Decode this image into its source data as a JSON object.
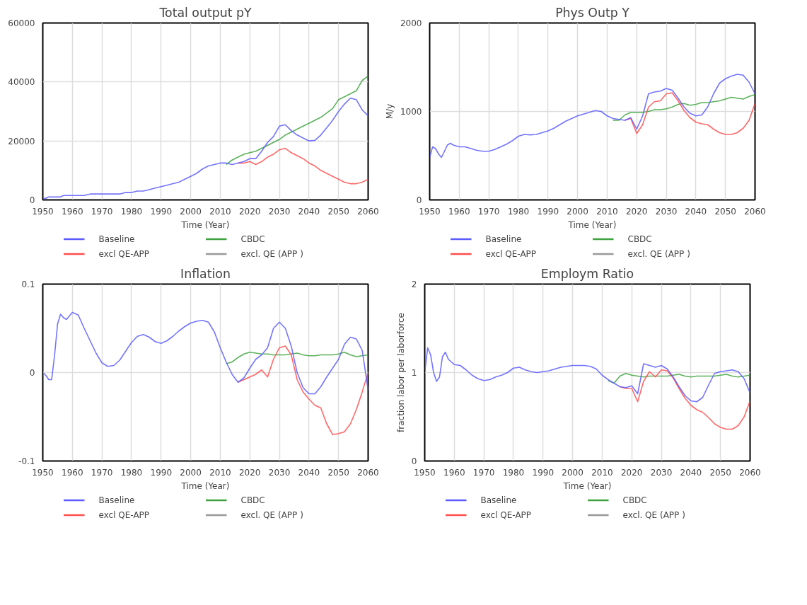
{
  "chart_data": [
    {
      "type": "line",
      "title": "Total output pY",
      "xlabel": "Time (Year)",
      "xlim": [
        1950,
        2060
      ],
      "xticks": [
        1950,
        1960,
        1970,
        1980,
        1990,
        2000,
        2010,
        2020,
        2030,
        2040,
        2050,
        2060
      ],
      "ylim": [
        0,
        60000
      ],
      "yticks": [
        0,
        20000,
        40000,
        60000
      ],
      "grid": true,
      "legend": "bottom",
      "line_style": "solid",
      "x": [
        1950,
        1951,
        1952,
        1953,
        1954,
        1955,
        1956,
        1957,
        1958,
        1960,
        1962,
        1964,
        1966,
        1968,
        1970,
        1972,
        1974,
        1976,
        1978,
        1980,
        1982,
        1984,
        1986,
        1988,
        1990,
        1992,
        1994,
        1996,
        1998,
        2000,
        2002,
        2004,
        2006,
        2008,
        2010,
        2012,
        2014,
        2016,
        2018,
        2020,
        2022,
        2024,
        2026,
        2028,
        2030,
        2032,
        2034,
        2036,
        2038,
        2040,
        2042,
        2044,
        2046,
        2048,
        2050,
        2052,
        2054,
        2056,
        2058,
        2060
      ],
      "series": [
        {
          "name": "Baseline",
          "color": "#5c5cff",
          "values": [
            500,
            500,
            1000,
            1000,
            1000,
            1000,
            1000,
            1500,
            1500,
            1500,
            1500,
            1500,
            2000,
            2000,
            2000,
            2000,
            2000,
            2000,
            2500,
            2500,
            3000,
            3000,
            3500,
            4000,
            4500,
            5000,
            5500,
            6000,
            7000,
            8000,
            9000,
            10500,
            11500,
            12000,
            12500,
            12500,
            12000,
            12500,
            13000,
            14000,
            14000,
            16500,
            19500,
            21500,
            25000,
            25500,
            23500,
            22000,
            21000,
            20000,
            20200,
            22000,
            24500,
            27000,
            30000,
            32500,
            34500,
            34000,
            30500,
            28500
          ]
        },
        {
          "name": "excl QE-APP",
          "color": "#ff4d4d",
          "values": [
            null,
            null,
            null,
            null,
            null,
            null,
            null,
            null,
            null,
            null,
            null,
            null,
            null,
            null,
            null,
            null,
            null,
            null,
            null,
            null,
            null,
            null,
            null,
            null,
            null,
            null,
            null,
            null,
            null,
            null,
            null,
            null,
            null,
            null,
            null,
            null,
            null,
            12500,
            12500,
            13000,
            12000,
            13000,
            14500,
            15500,
            17000,
            17500,
            16000,
            15000,
            14000,
            12500,
            11500,
            10000,
            9000,
            8000,
            7000,
            6000,
            5500,
            5500,
            6000,
            7000
          ]
        },
        {
          "name": "CBDC",
          "color": "#3fa43f",
          "values": [
            null,
            null,
            null,
            null,
            null,
            null,
            null,
            null,
            null,
            null,
            null,
            null,
            null,
            null,
            null,
            null,
            null,
            null,
            null,
            null,
            null,
            null,
            null,
            null,
            null,
            null,
            null,
            null,
            null,
            null,
            null,
            null,
            null,
            null,
            null,
            12000,
            13500,
            14500,
            15500,
            16000,
            16500,
            17500,
            18500,
            19500,
            20500,
            22000,
            23000,
            24000,
            25000,
            26000,
            27000,
            28000,
            29500,
            31000,
            34000,
            35000,
            36000,
            37000,
            40500,
            42000
          ]
        },
        {
          "name": "excl. QE (APP )",
          "color": "#999999",
          "values": [
            null,
            null,
            null,
            null,
            null,
            null,
            null,
            null,
            null,
            null,
            null,
            null,
            null,
            null,
            null,
            null,
            null,
            null,
            null,
            null,
            null,
            null,
            null,
            null,
            null,
            null,
            null,
            null,
            null,
            null,
            null,
            null,
            null,
            null,
            null,
            null,
            null,
            null,
            null,
            null,
            null,
            null,
            null,
            null,
            null,
            null,
            null,
            null,
            null,
            null,
            null,
            null,
            null,
            null,
            null,
            null,
            null,
            null,
            null,
            null
          ]
        }
      ]
    },
    {
      "type": "line",
      "title": "Phys Outp Y",
      "xlabel": "Time (Year)",
      "ylabel": "M/y",
      "xlim": [
        1950,
        2060
      ],
      "xticks": [
        1950,
        1960,
        1970,
        1980,
        1990,
        2000,
        2010,
        2020,
        2030,
        2040,
        2050,
        2060
      ],
      "ylim": [
        0,
        2000
      ],
      "yticks": [
        0,
        1000,
        2000
      ],
      "grid": true,
      "legend": "bottom",
      "line_style": "solid",
      "x": [
        1950,
        1951,
        1952,
        1953,
        1954,
        1955,
        1956,
        1957,
        1958,
        1960,
        1962,
        1964,
        1966,
        1968,
        1970,
        1972,
        1974,
        1976,
        1978,
        1980,
        1982,
        1984,
        1986,
        1988,
        1990,
        1992,
        1994,
        1996,
        1998,
        2000,
        2002,
        2004,
        2006,
        2008,
        2010,
        2012,
        2014,
        2016,
        2018,
        2020,
        2022,
        2024,
        2026,
        2028,
        2030,
        2032,
        2034,
        2036,
        2038,
        2040,
        2042,
        2044,
        2046,
        2048,
        2050,
        2052,
        2054,
        2056,
        2058,
        2060
      ],
      "series": [
        {
          "name": "Baseline",
          "color": "#5c5cff",
          "values": [
            480,
            600,
            580,
            520,
            480,
            550,
            620,
            640,
            620,
            600,
            600,
            580,
            560,
            550,
            550,
            570,
            600,
            630,
            670,
            720,
            740,
            735,
            740,
            760,
            780,
            810,
            850,
            890,
            920,
            950,
            970,
            990,
            1010,
            1000,
            950,
            920,
            910,
            900,
            930,
            800,
            950,
            1200,
            1220,
            1230,
            1260,
            1240,
            1150,
            1050,
            980,
            950,
            960,
            1050,
            1200,
            1320,
            1370,
            1400,
            1420,
            1410,
            1330,
            1200
          ]
        },
        {
          "name": "excl QE-APP",
          "color": "#ff4d4d",
          "values": [
            null,
            null,
            null,
            null,
            null,
            null,
            null,
            null,
            null,
            null,
            null,
            null,
            null,
            null,
            null,
            null,
            null,
            null,
            null,
            null,
            null,
            null,
            null,
            null,
            null,
            null,
            null,
            null,
            null,
            null,
            null,
            null,
            null,
            null,
            null,
            null,
            null,
            900,
            920,
            750,
            850,
            1050,
            1110,
            1120,
            1200,
            1210,
            1120,
            1010,
            930,
            880,
            860,
            850,
            800,
            760,
            740,
            740,
            760,
            810,
            900,
            1090
          ]
        },
        {
          "name": "CBDC",
          "color": "#3fa43f",
          "values": [
            null,
            null,
            null,
            null,
            null,
            null,
            null,
            null,
            null,
            null,
            null,
            null,
            null,
            null,
            null,
            null,
            null,
            null,
            null,
            null,
            null,
            null,
            null,
            null,
            null,
            null,
            null,
            null,
            null,
            null,
            null,
            null,
            null,
            null,
            null,
            900,
            900,
            960,
            990,
            990,
            990,
            1000,
            1020,
            1020,
            1030,
            1050,
            1080,
            1090,
            1070,
            1080,
            1100,
            1100,
            1110,
            1120,
            1140,
            1160,
            1150,
            1140,
            1170,
            1190
          ]
        },
        {
          "name": "excl. QE (APP )",
          "color": "#999999",
          "values": [
            null,
            null,
            null,
            null,
            null,
            null,
            null,
            null,
            null,
            null,
            null,
            null,
            null,
            null,
            null,
            null,
            null,
            null,
            null,
            null,
            null,
            null,
            null,
            null,
            null,
            null,
            null,
            null,
            null,
            null,
            null,
            null,
            null,
            null,
            null,
            null,
            null,
            null,
            null,
            null,
            null,
            null,
            null,
            null,
            null,
            null,
            null,
            null,
            null,
            null,
            null,
            null,
            null,
            null,
            null,
            null,
            null,
            null,
            null,
            null
          ]
        }
      ]
    },
    {
      "type": "line",
      "title": "Inflation",
      "xlabel": "Time (Year)",
      "xlim": [
        1950,
        2060
      ],
      "xticks": [
        1950,
        1960,
        1970,
        1980,
        1990,
        2000,
        2010,
        2020,
        2030,
        2040,
        2050,
        2060
      ],
      "ylim": [
        -0.1,
        0.1
      ],
      "yticks": [
        -0.1,
        0,
        0.1
      ],
      "grid": true,
      "legend": "bottom",
      "line_style": "solid",
      "x": [
        1950,
        1951,
        1952,
        1953,
        1954,
        1955,
        1956,
        1957,
        1958,
        1960,
        1962,
        1964,
        1966,
        1968,
        1970,
        1972,
        1974,
        1976,
        1978,
        1980,
        1982,
        1984,
        1986,
        1988,
        1990,
        1992,
        1994,
        1996,
        1998,
        2000,
        2002,
        2004,
        2006,
        2008,
        2010,
        2012,
        2014,
        2016,
        2018,
        2020,
        2022,
        2024,
        2026,
        2028,
        2030,
        2032,
        2034,
        2036,
        2038,
        2040,
        2042,
        2044,
        2046,
        2048,
        2050,
        2052,
        2054,
        2056,
        2058,
        2060
      ],
      "series": [
        {
          "name": "Baseline",
          "color": "#5c5cff",
          "values": [
            0,
            -0.003,
            -0.008,
            -0.008,
            0.02,
            0.055,
            0.066,
            0.062,
            0.06,
            0.068,
            0.065,
            0.05,
            0.036,
            0.022,
            0.011,
            0.007,
            0.008,
            0.014,
            0.024,
            0.034,
            0.041,
            0.043,
            0.04,
            0.035,
            0.033,
            0.036,
            0.041,
            0.047,
            0.052,
            0.056,
            0.058,
            0.059,
            0.057,
            0.046,
            0.028,
            0.012,
            -0.002,
            -0.011,
            -0.006,
            0.005,
            0.015,
            0.02,
            0.028,
            0.05,
            0.057,
            0.05,
            0.03,
            0.0,
            -0.017,
            -0.024,
            -0.024,
            -0.016,
            -0.005,
            0.005,
            0.015,
            0.032,
            0.04,
            0.038,
            0.025,
            -0.02
          ]
        },
        {
          "name": "excl QE-APP",
          "color": "#ff4d4d",
          "values": [
            null,
            null,
            null,
            null,
            null,
            null,
            null,
            null,
            null,
            null,
            null,
            null,
            null,
            null,
            null,
            null,
            null,
            null,
            null,
            null,
            null,
            null,
            null,
            null,
            null,
            null,
            null,
            null,
            null,
            null,
            null,
            null,
            null,
            null,
            null,
            null,
            null,
            -0.011,
            -0.008,
            -0.005,
            -0.002,
            0.003,
            -0.005,
            0.015,
            0.028,
            0.03,
            0.02,
            -0.008,
            -0.022,
            -0.03,
            -0.037,
            -0.04,
            -0.058,
            -0.07,
            -0.069,
            -0.067,
            -0.058,
            -0.042,
            -0.022,
            0.0
          ]
        },
        {
          "name": "CBDC",
          "color": "#3fa43f",
          "values": [
            null,
            null,
            null,
            null,
            null,
            null,
            null,
            null,
            null,
            null,
            null,
            null,
            null,
            null,
            null,
            null,
            null,
            null,
            null,
            null,
            null,
            null,
            null,
            null,
            null,
            null,
            null,
            null,
            null,
            null,
            null,
            null,
            null,
            null,
            null,
            0.01,
            0.012,
            0.017,
            0.021,
            0.023,
            0.022,
            0.021,
            0.021,
            0.02,
            0.02,
            0.02,
            0.021,
            0.022,
            0.02,
            0.019,
            0.019,
            0.02,
            0.02,
            0.02,
            0.021,
            0.023,
            0.02,
            0.018,
            0.019,
            0.02
          ]
        },
        {
          "name": "excl. QE (APP )",
          "color": "#999999",
          "values": [
            null,
            null,
            null,
            null,
            null,
            null,
            null,
            null,
            null,
            null,
            null,
            null,
            null,
            null,
            null,
            null,
            null,
            null,
            null,
            null,
            null,
            null,
            null,
            null,
            null,
            null,
            null,
            null,
            null,
            null,
            null,
            null,
            null,
            null,
            null,
            null,
            null,
            null,
            null,
            null,
            null,
            null,
            null,
            null,
            null,
            null,
            null,
            null,
            null,
            null,
            null,
            null,
            null,
            null,
            null,
            null,
            null,
            null,
            null,
            null
          ]
        }
      ]
    },
    {
      "type": "line",
      "title": "Employm Ratio",
      "xlabel": "Time (Year)",
      "ylabel": "fraction labor per laborforce",
      "xlim": [
        1950,
        2060
      ],
      "xticks": [
        1950,
        1960,
        1970,
        1980,
        1990,
        2000,
        2010,
        2020,
        2030,
        2040,
        2050,
        2060
      ],
      "ylim": [
        0,
        2
      ],
      "yticks": [
        0,
        1,
        2
      ],
      "grid": true,
      "legend": "bottom",
      "line_style": "solid",
      "x": [
        1950,
        1951,
        1952,
        1953,
        1954,
        1955,
        1956,
        1957,
        1958,
        1960,
        1962,
        1964,
        1966,
        1968,
        1970,
        1972,
        1974,
        1976,
        1978,
        1980,
        1982,
        1984,
        1986,
        1988,
        1990,
        1992,
        1994,
        1996,
        1998,
        2000,
        2002,
        2004,
        2006,
        2008,
        2010,
        2012,
        2014,
        2016,
        2018,
        2020,
        2022,
        2024,
        2026,
        2028,
        2030,
        2032,
        2034,
        2036,
        2038,
        2040,
        2042,
        2044,
        2046,
        2048,
        2050,
        2052,
        2054,
        2056,
        2058,
        2060
      ],
      "series": [
        {
          "name": "Baseline",
          "color": "#5c5cff",
          "values": [
            1.0,
            1.28,
            1.2,
            1.0,
            0.9,
            0.95,
            1.18,
            1.23,
            1.15,
            1.09,
            1.08,
            1.03,
            0.97,
            0.93,
            0.91,
            0.92,
            0.95,
            0.97,
            1.0,
            1.05,
            1.06,
            1.03,
            1.01,
            1.0,
            1.01,
            1.02,
            1.04,
            1.06,
            1.07,
            1.08,
            1.08,
            1.08,
            1.07,
            1.04,
            0.97,
            0.92,
            0.88,
            0.84,
            0.83,
            0.85,
            0.76,
            1.1,
            1.08,
            1.06,
            1.08,
            1.04,
            0.95,
            0.84,
            0.74,
            0.68,
            0.67,
            0.72,
            0.86,
            0.99,
            1.01,
            1.02,
            1.03,
            1.01,
            0.93,
            0.77
          ]
        },
        {
          "name": "excl QE-APP",
          "color": "#ff4d4d",
          "values": [
            null,
            null,
            null,
            null,
            null,
            null,
            null,
            null,
            null,
            null,
            null,
            null,
            null,
            null,
            null,
            null,
            null,
            null,
            null,
            null,
            null,
            null,
            null,
            null,
            null,
            null,
            null,
            null,
            null,
            null,
            null,
            null,
            null,
            null,
            null,
            null,
            null,
            0.84,
            0.82,
            0.82,
            0.67,
            0.9,
            1.01,
            0.95,
            1.03,
            1.02,
            0.94,
            0.82,
            0.71,
            0.63,
            0.58,
            0.55,
            0.49,
            0.42,
            0.38,
            0.36,
            0.36,
            0.4,
            0.5,
            0.68
          ]
        },
        {
          "name": "CBDC",
          "color": "#3fa43f",
          "values": [
            null,
            null,
            null,
            null,
            null,
            null,
            null,
            null,
            null,
            null,
            null,
            null,
            null,
            null,
            null,
            null,
            null,
            null,
            null,
            null,
            null,
            null,
            null,
            null,
            null,
            null,
            null,
            null,
            null,
            null,
            null,
            null,
            null,
            null,
            null,
            0.91,
            0.88,
            0.96,
            0.99,
            0.97,
            0.96,
            0.95,
            0.96,
            0.96,
            0.96,
            0.96,
            0.97,
            0.98,
            0.96,
            0.95,
            0.96,
            0.96,
            0.96,
            0.96,
            0.97,
            0.98,
            0.96,
            0.95,
            0.96,
            0.97
          ]
        },
        {
          "name": "excl. QE (APP )",
          "color": "#999999",
          "values": [
            null,
            null,
            null,
            null,
            null,
            null,
            null,
            null,
            null,
            null,
            null,
            null,
            null,
            null,
            null,
            null,
            null,
            null,
            null,
            null,
            null,
            null,
            null,
            null,
            null,
            null,
            null,
            null,
            null,
            null,
            null,
            null,
            null,
            null,
            null,
            null,
            null,
            null,
            null,
            null,
            null,
            null,
            null,
            null,
            null,
            null,
            null,
            null,
            null,
            null,
            null,
            null,
            null,
            null,
            null,
            null,
            null,
            null,
            null,
            null
          ]
        }
      ]
    }
  ]
}
